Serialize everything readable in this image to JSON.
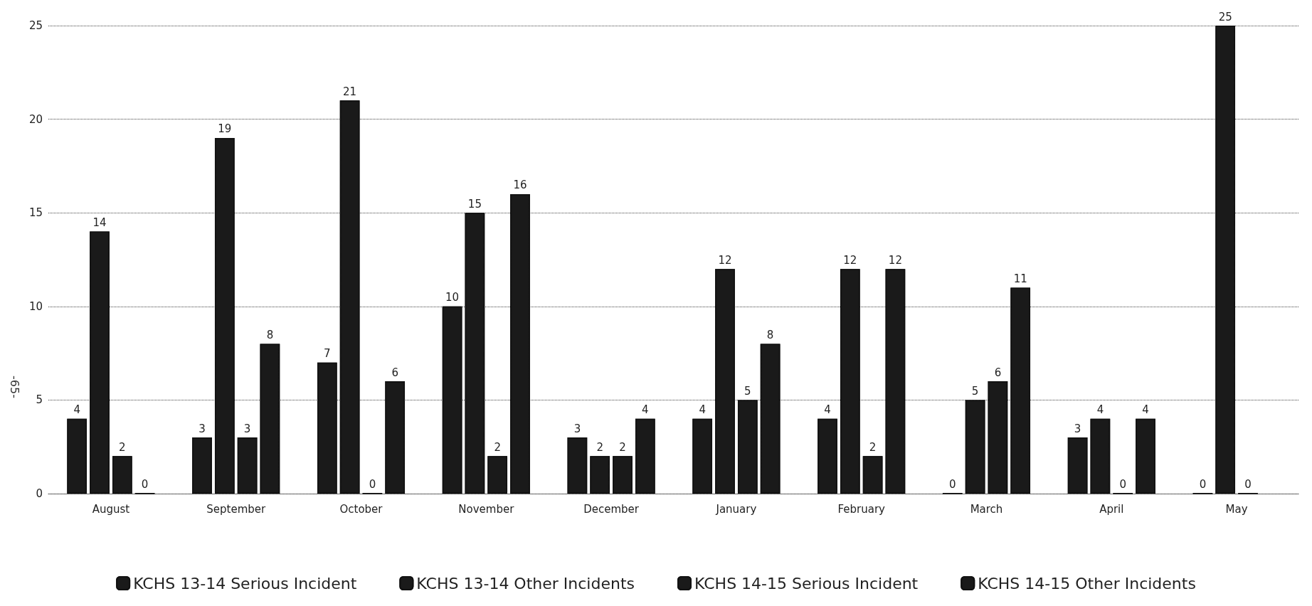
{
  "chart_data": {
    "type": "bar",
    "categories": [
      "August",
      "September",
      "October",
      "November",
      "December",
      "January",
      "February",
      "March",
      "April",
      "May"
    ],
    "series": [
      {
        "name": "KCHS 13-14 Serious Incident",
        "color": "#1a1a1a",
        "values": [
          4,
          3,
          7,
          10,
          3,
          4,
          4,
          0,
          3,
          0
        ]
      },
      {
        "name": "KCHS 13-14 Other Incidents",
        "color": "#1a1a1a",
        "values": [
          14,
          19,
          21,
          15,
          2,
          12,
          12,
          5,
          4,
          25
        ]
      },
      {
        "name": "KCHS 14-15 Serious Incident",
        "color": "#1a1a1a",
        "values": [
          2,
          3,
          0,
          2,
          2,
          5,
          2,
          6,
          0,
          0
        ]
      },
      {
        "name": "KCHS 14-15 Other Incidents",
        "color": "#1a1a1a",
        "values": [
          0,
          8,
          6,
          16,
          4,
          8,
          12,
          11,
          4,
          null
        ]
      }
    ],
    "ylim": [
      0,
      25
    ],
    "yticks": [
      0,
      5,
      10,
      15,
      20,
      25
    ],
    "grid": "y",
    "legend": "bottom",
    "data_labels": true,
    "annotations": [
      "-65-"
    ]
  }
}
